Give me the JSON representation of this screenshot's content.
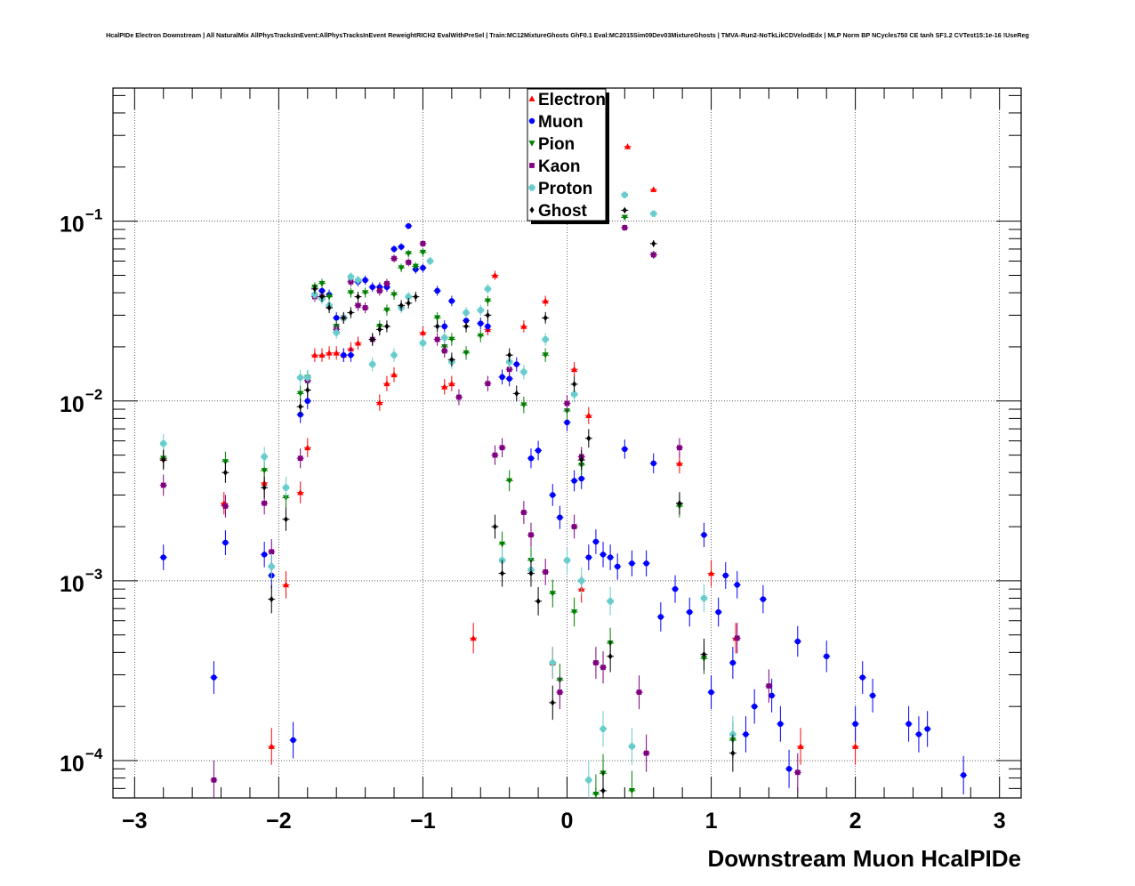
{
  "chart_data": {
    "type": "scatter",
    "title": "HcalPIDe Electron Downstream | All NaturalMix AllPhysTracksInEvent:AllPhysTracksInEvent ReweightRICH2 EvalWithPreSel | Train:MC12MixtureGhosts GhF0.1 Eval:MC2015Sim09Dev03MixtureGhosts | TMVA-Run2-NoTkLikCDVelodEdx | MLP Norm BP NCycles750 CE tanh SF1.2 CVTest15:1e-16 !UseReg",
    "xlabel": "Downstream Muon HcalPIDe",
    "ylabel": "",
    "xlim": [
      -3.15,
      3.15
    ],
    "ylim": [
      6.2e-05,
      0.55
    ],
    "y_scale": "log",
    "grid": true,
    "legend_position": "top-center",
    "x_ticks": [
      {
        "value": -3,
        "label": "−3"
      },
      {
        "value": -2,
        "label": "−2"
      },
      {
        "value": -1,
        "label": "−1"
      },
      {
        "value": 0,
        "label": "0"
      },
      {
        "value": 1,
        "label": "1"
      },
      {
        "value": 2,
        "label": "2"
      },
      {
        "value": 3,
        "label": "3"
      }
    ],
    "y_ticks": [
      {
        "value": 0.0001,
        "base": "10",
        "exp": "−4"
      },
      {
        "value": 0.001,
        "base": "10",
        "exp": "−3"
      },
      {
        "value": 0.01,
        "base": "10",
        "exp": "−2"
      },
      {
        "value": 0.1,
        "base": "10",
        "exp": "−1"
      }
    ],
    "series": [
      {
        "name": "Electron",
        "color": "#ff0000",
        "marker": "triangle-up",
        "points": [
          [
            -2.8,
            0.0048
          ],
          [
            -2.38,
            0.0027
          ],
          [
            -2.1,
            0.0035
          ],
          [
            -2.05,
            0.00012
          ],
          [
            -1.95,
            0.00095
          ],
          [
            -1.85,
            0.0031
          ],
          [
            -1.8,
            0.0055
          ],
          [
            -1.75,
            0.018
          ],
          [
            -1.7,
            0.018
          ],
          [
            -1.65,
            0.0185
          ],
          [
            -1.6,
            0.0185
          ],
          [
            -1.55,
            0.018
          ],
          [
            -1.5,
            0.0195
          ],
          [
            -1.45,
            0.021
          ],
          [
            -1.3,
            0.0098
          ],
          [
            -1.25,
            0.0125
          ],
          [
            -1.2,
            0.014
          ],
          [
            -1.0,
            0.024
          ],
          [
            -0.85,
            0.012
          ],
          [
            -0.8,
            0.0125
          ],
          [
            -0.65,
            0.00048
          ],
          [
            -0.55,
            0.025
          ],
          [
            -0.5,
            0.05
          ],
          [
            -0.3,
            0.026
          ],
          [
            -0.15,
            0.036
          ],
          [
            -0.1,
            0.00035
          ],
          [
            0.05,
            0.015
          ],
          [
            0.1,
            0.0009
          ],
          [
            0.15,
            0.0083
          ],
          [
            0.42,
            0.26
          ],
          [
            0.6,
            0.15
          ],
          [
            0.78,
            0.0045
          ],
          [
            1.0,
            0.0011
          ],
          [
            1.17,
            0.00048
          ],
          [
            1.62,
            0.00012
          ],
          [
            2.0,
            0.00012
          ]
        ]
      },
      {
        "name": "Muon",
        "color": "#0000ff",
        "marker": "circle",
        "points": [
          [
            -2.8,
            0.00135
          ],
          [
            -2.45,
            0.00029
          ],
          [
            -2.37,
            0.00163
          ],
          [
            -2.1,
            0.0014
          ],
          [
            -2.05,
            0.00107
          ],
          [
            -1.9,
            0.00013
          ],
          [
            -1.85,
            0.0084
          ],
          [
            -1.8,
            0.01
          ],
          [
            -1.75,
            0.039
          ],
          [
            -1.7,
            0.041
          ],
          [
            -1.65,
            0.039
          ],
          [
            -1.6,
            0.029
          ],
          [
            -1.55,
            0.018
          ],
          [
            -1.5,
            0.018
          ],
          [
            -1.45,
            0.046
          ],
          [
            -1.4,
            0.047
          ],
          [
            -1.35,
            0.043
          ],
          [
            -1.3,
            0.043
          ],
          [
            -1.25,
            0.043
          ],
          [
            -1.2,
            0.07
          ],
          [
            -1.15,
            0.072
          ],
          [
            -1.1,
            0.094
          ],
          [
            -1.05,
            0.054
          ],
          [
            -1.0,
            0.055
          ],
          [
            -0.9,
            0.041
          ],
          [
            -0.85,
            0.026
          ],
          [
            -0.8,
            0.036
          ],
          [
            -0.7,
            0.028
          ],
          [
            -0.6,
            0.027
          ],
          [
            -0.55,
            0.026
          ],
          [
            -0.45,
            0.0136
          ],
          [
            -0.4,
            0.0133
          ],
          [
            -0.35,
            0.016
          ],
          [
            -0.25,
            0.0048
          ],
          [
            -0.2,
            0.0053
          ],
          [
            -0.1,
            0.003
          ],
          [
            -0.05,
            0.00225
          ],
          [
            0.0,
            0.0076
          ],
          [
            0.05,
            0.0036
          ],
          [
            0.1,
            0.0037
          ],
          [
            0.15,
            0.00135
          ],
          [
            0.2,
            0.00165
          ],
          [
            0.25,
            0.0014
          ],
          [
            0.3,
            0.00135
          ],
          [
            0.35,
            0.0012
          ],
          [
            0.4,
            0.0054
          ],
          [
            0.45,
            0.00125
          ],
          [
            0.55,
            0.00125
          ],
          [
            0.6,
            0.0045
          ],
          [
            0.65,
            0.00063
          ],
          [
            0.75,
            0.0009
          ],
          [
            0.85,
            0.00067
          ],
          [
            0.95,
            0.0018
          ],
          [
            1.0,
            0.00024
          ],
          [
            1.05,
            0.00067
          ],
          [
            1.1,
            0.00107
          ],
          [
            1.15,
            0.00035
          ],
          [
            1.18,
            0.00095
          ],
          [
            1.24,
            0.00014
          ],
          [
            1.3,
            0.0002
          ],
          [
            1.36,
            0.00079
          ],
          [
            1.42,
            0.00023
          ],
          [
            1.48,
            0.00016
          ],
          [
            1.54,
            9e-05
          ],
          [
            1.6,
            0.00046
          ],
          [
            1.8,
            0.00038
          ],
          [
            2.0,
            0.00016
          ],
          [
            2.05,
            0.00029
          ],
          [
            2.12,
            0.00023
          ],
          [
            2.37,
            0.00016
          ],
          [
            2.44,
            0.00014
          ],
          [
            2.5,
            0.00015
          ],
          [
            2.75,
            8.3e-05
          ]
        ]
      },
      {
        "name": "Pion",
        "color": "#008000",
        "marker": "triangle-down",
        "points": [
          [
            -2.8,
            0.0048
          ],
          [
            -2.37,
            0.0046
          ],
          [
            -2.1,
            0.0041
          ],
          [
            -1.95,
            0.0029
          ],
          [
            -1.85,
            0.011
          ],
          [
            -1.8,
            0.0135
          ],
          [
            -1.75,
            0.043
          ],
          [
            -1.7,
            0.045
          ],
          [
            -1.65,
            0.038
          ],
          [
            -1.6,
            0.026
          ],
          [
            -1.5,
            0.04
          ],
          [
            -1.45,
            0.034
          ],
          [
            -1.4,
            0.04
          ],
          [
            -1.3,
            0.026
          ],
          [
            -1.25,
            0.032
          ],
          [
            -1.2,
            0.039
          ],
          [
            -1.15,
            0.055
          ],
          [
            -1.1,
            0.066
          ],
          [
            -1.05,
            0.056
          ],
          [
            -1.0,
            0.067
          ],
          [
            -0.9,
            0.029
          ],
          [
            -0.85,
            0.02
          ],
          [
            -0.8,
            0.022
          ],
          [
            -0.7,
            0.0185
          ],
          [
            -0.6,
            0.023
          ],
          [
            -0.55,
            0.036
          ],
          [
            -0.45,
            0.0016
          ],
          [
            -0.4,
            0.0036
          ],
          [
            -0.3,
            0.0095
          ],
          [
            -0.25,
            0.0013
          ],
          [
            -0.15,
            0.018
          ],
          [
            -0.1,
            0.00085
          ],
          [
            -0.05,
            0.00028
          ],
          [
            0.0,
            0.0088
          ],
          [
            0.05,
            0.00067
          ],
          [
            0.1,
            0.0044
          ],
          [
            0.2,
            6.5e-05
          ],
          [
            0.25,
            8.5e-05
          ],
          [
            0.3,
            0.00045
          ],
          [
            0.4,
            0.105
          ],
          [
            0.45,
            6.8e-05
          ],
          [
            0.6,
            0.065
          ],
          [
            0.78,
            0.0026
          ],
          [
            0.95,
            0.00037
          ],
          [
            1.15,
            0.00013
          ]
        ]
      },
      {
        "name": "Kaon",
        "color": "#800080",
        "marker": "square",
        "points": [
          [
            -2.8,
            0.0034
          ],
          [
            -2.45,
            7.8e-05
          ],
          [
            -2.37,
            0.0026
          ],
          [
            -2.1,
            0.0027
          ],
          [
            -2.05,
            0.00145
          ],
          [
            -1.85,
            0.0048
          ],
          [
            -1.8,
            0.013
          ],
          [
            -1.75,
            0.038
          ],
          [
            -1.7,
            0.038
          ],
          [
            -1.6,
            0.025
          ],
          [
            -1.55,
            0.029
          ],
          [
            -1.5,
            0.046
          ],
          [
            -1.45,
            0.034
          ],
          [
            -1.4,
            0.033
          ],
          [
            -1.35,
            0.022
          ],
          [
            -1.3,
            0.041
          ],
          [
            -1.25,
            0.045
          ],
          [
            -1.2,
            0.062
          ],
          [
            -1.1,
            0.059
          ],
          [
            -1.0,
            0.075
          ],
          [
            -0.9,
            0.022
          ],
          [
            -0.85,
            0.019
          ],
          [
            -0.75,
            0.0105
          ],
          [
            -0.55,
            0.0125
          ],
          [
            -0.5,
            0.005
          ],
          [
            -0.45,
            0.0055
          ],
          [
            -0.4,
            0.015
          ],
          [
            -0.3,
            0.0024
          ],
          [
            -0.25,
            0.0018
          ],
          [
            -0.15,
            0.00112
          ],
          [
            -0.05,
            0.00024
          ],
          [
            0.0,
            0.0097
          ],
          [
            0.05,
            0.002
          ],
          [
            0.1,
            0.0049
          ],
          [
            0.2,
            0.00035
          ],
          [
            0.25,
            0.00033
          ],
          [
            0.4,
            0.092
          ],
          [
            0.5,
            0.00024
          ],
          [
            0.55,
            0.00011
          ],
          [
            0.6,
            0.065
          ],
          [
            0.78,
            0.0055
          ],
          [
            1.18,
            0.00048
          ],
          [
            1.4,
            0.00026
          ],
          [
            1.6,
            8.6e-05
          ]
        ]
      },
      {
        "name": "Proton",
        "color": "#66cccc",
        "marker": "cross",
        "points": [
          [
            -2.8,
            0.0058
          ],
          [
            -2.1,
            0.0049
          ],
          [
            -2.05,
            0.0012
          ],
          [
            -1.95,
            0.0033
          ],
          [
            -1.85,
            0.0135
          ],
          [
            -1.8,
            0.0135
          ],
          [
            -1.75,
            0.039
          ],
          [
            -1.7,
            0.037
          ],
          [
            -1.65,
            0.034
          ],
          [
            -1.6,
            0.024
          ],
          [
            -1.55,
            0.029
          ],
          [
            -1.5,
            0.049
          ],
          [
            -1.45,
            0.047
          ],
          [
            -1.35,
            0.016
          ],
          [
            -1.2,
            0.018
          ],
          [
            -1.15,
            0.033
          ],
          [
            -1.1,
            0.038
          ],
          [
            -1.0,
            0.021
          ],
          [
            -0.95,
            0.06
          ],
          [
            -0.85,
            0.0225
          ],
          [
            -0.8,
            0.0165
          ],
          [
            -0.7,
            0.031
          ],
          [
            -0.6,
            0.032
          ],
          [
            -0.55,
            0.042
          ],
          [
            -0.45,
            0.0013
          ],
          [
            -0.4,
            0.0165
          ],
          [
            -0.3,
            0.0145
          ],
          [
            -0.25,
            0.00115
          ],
          [
            -0.15,
            0.022
          ],
          [
            -0.1,
            0.00035
          ],
          [
            0.0,
            0.0013
          ],
          [
            0.05,
            0.0109
          ],
          [
            0.1,
            0.001
          ],
          [
            0.15,
            7.8e-05
          ],
          [
            0.25,
            0.00015
          ],
          [
            0.3,
            0.00077
          ],
          [
            0.4,
            0.14
          ],
          [
            0.45,
            0.00012
          ],
          [
            0.6,
            0.11
          ],
          [
            0.95,
            0.0008
          ],
          [
            1.15,
            0.00014
          ]
        ]
      },
      {
        "name": "Ghost",
        "color": "#000000",
        "marker": "diamond",
        "points": [
          [
            -2.8,
            0.0047
          ],
          [
            -2.37,
            0.004
          ],
          [
            -2.1,
            0.0033
          ],
          [
            -2.05,
            0.00079
          ],
          [
            -1.95,
            0.0022
          ],
          [
            -1.85,
            0.0093
          ],
          [
            -1.8,
            0.0115
          ],
          [
            -1.75,
            0.042
          ],
          [
            -1.7,
            0.038
          ],
          [
            -1.65,
            0.033
          ],
          [
            -1.55,
            0.029
          ],
          [
            -1.5,
            0.031
          ],
          [
            -1.45,
            0.038
          ],
          [
            -1.35,
            0.022
          ],
          [
            -1.3,
            0.025
          ],
          [
            -1.25,
            0.026
          ],
          [
            -1.15,
            0.034
          ],
          [
            -1.1,
            0.035
          ],
          [
            -1.05,
            0.038
          ],
          [
            -0.9,
            0.026
          ],
          [
            -0.8,
            0.017
          ],
          [
            -0.7,
            0.026
          ],
          [
            -0.55,
            0.03
          ],
          [
            -0.5,
            0.002
          ],
          [
            -0.45,
            0.0011
          ],
          [
            -0.4,
            0.018
          ],
          [
            -0.35,
            0.011
          ],
          [
            -0.25,
            0.0011
          ],
          [
            -0.2,
            0.00077
          ],
          [
            -0.15,
            0.029
          ],
          [
            -0.1,
            0.00021
          ],
          [
            0.05,
            0.0124
          ],
          [
            0.1,
            0.0047
          ],
          [
            0.15,
            0.0062
          ],
          [
            0.25,
            6.8e-05
          ],
          [
            0.3,
            0.00038
          ],
          [
            0.4,
            0.115
          ],
          [
            0.6,
            0.075
          ],
          [
            0.78,
            0.0027
          ],
          [
            0.95,
            0.00039
          ],
          [
            1.15,
            0.00011
          ]
        ]
      }
    ]
  }
}
